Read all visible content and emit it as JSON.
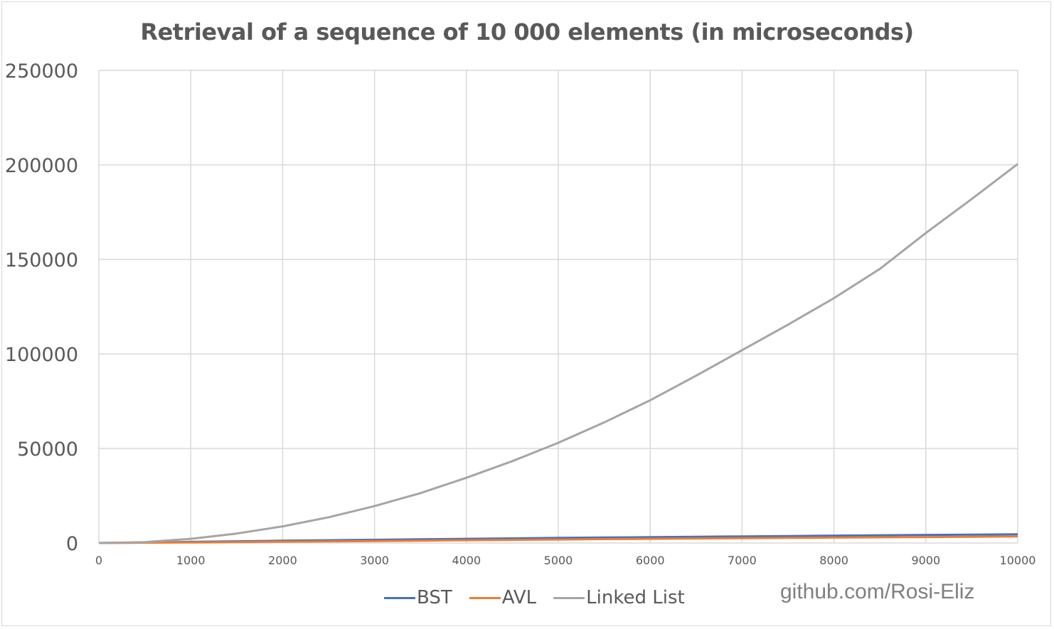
{
  "chart_data": {
    "type": "line",
    "title": "Retrieval of a sequence of 10 000 elements (in microseconds)",
    "xlabel": "",
    "ylabel": "",
    "xlim": [
      0,
      10000
    ],
    "ylim": [
      0,
      250000
    ],
    "x_ticks": [
      "0",
      "1000",
      "2000",
      "3000",
      "4000",
      "5000",
      "6000",
      "7000",
      "8000",
      "9000",
      "10000"
    ],
    "y_ticks": [
      "0",
      "50000",
      "100000",
      "150000",
      "200000",
      "250000"
    ],
    "grid": true,
    "legend_position": "bottom",
    "x": [
      0,
      500,
      1000,
      1500,
      2000,
      2500,
      3000,
      3500,
      4000,
      4500,
      5000,
      5500,
      6000,
      6500,
      7000,
      7500,
      8000,
      8500,
      9000,
      9500,
      10000
    ],
    "series": [
      {
        "name": "BST",
        "color": "#4472c4",
        "values": [
          0,
          300,
          600,
          900,
          1200,
          1450,
          1700,
          1950,
          2200,
          2450,
          2700,
          2900,
          3100,
          3300,
          3500,
          3700,
          3900,
          4100,
          4300,
          4450,
          4600
        ]
      },
      {
        "name": "AVL",
        "color": "#ed7d31",
        "values": [
          0,
          150,
          300,
          500,
          700,
          850,
          1050,
          1250,
          1450,
          1650,
          1850,
          2050,
          2200,
          2400,
          2550,
          2700,
          2850,
          3000,
          3150,
          3300,
          3450
        ]
      },
      {
        "name": "Linked List",
        "color": "#a5a5a5",
        "values": [
          0,
          500,
          2200,
          5000,
          8800,
          13600,
          19500,
          26400,
          34500,
          43300,
          53000,
          63800,
          75500,
          88500,
          102000,
          115500,
          129500,
          145000,
          164000,
          182000,
          200500
        ]
      }
    ]
  },
  "watermark": "github.com/Rosi-Eliz"
}
